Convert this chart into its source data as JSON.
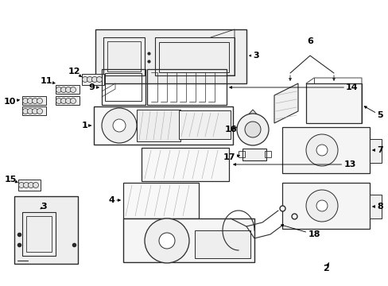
{
  "bg_color": "#ffffff",
  "fig_width": 4.89,
  "fig_height": 3.6,
  "dpi": 100,
  "line_color": "#2a2a2a",
  "text_color": "#000000",
  "font_size": 8,
  "font_size_large": 9
}
